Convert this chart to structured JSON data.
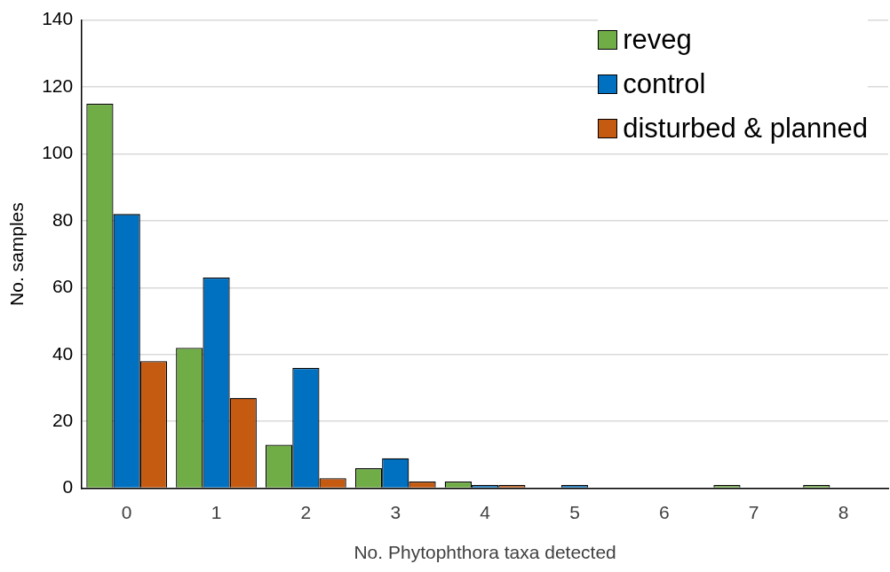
{
  "chart_data": {
    "type": "bar",
    "xlabel": "No. Phytophthora taxa detected",
    "ylabel": "No. samples",
    "categories": [
      "0",
      "1",
      "2",
      "3",
      "4",
      "5",
      "6",
      "7",
      "8"
    ],
    "series": [
      {
        "name": "reveg",
        "color": "#70ad47",
        "values": [
          115,
          42,
          13,
          6,
          2,
          0,
          0,
          1,
          1
        ]
      },
      {
        "name": "control",
        "color": "#0070c0",
        "values": [
          82,
          63,
          36,
          9,
          1,
          1,
          0,
          0,
          0
        ]
      },
      {
        "name": "disturbed & planned",
        "color": "#c55a11",
        "values": [
          38,
          27,
          3,
          2,
          1,
          0,
          0,
          0,
          0
        ]
      }
    ],
    "ylim": [
      0,
      140
    ],
    "yticks": [
      0,
      20,
      40,
      60,
      80,
      100,
      120,
      140
    ],
    "grid": "y",
    "legend": "top right"
  }
}
